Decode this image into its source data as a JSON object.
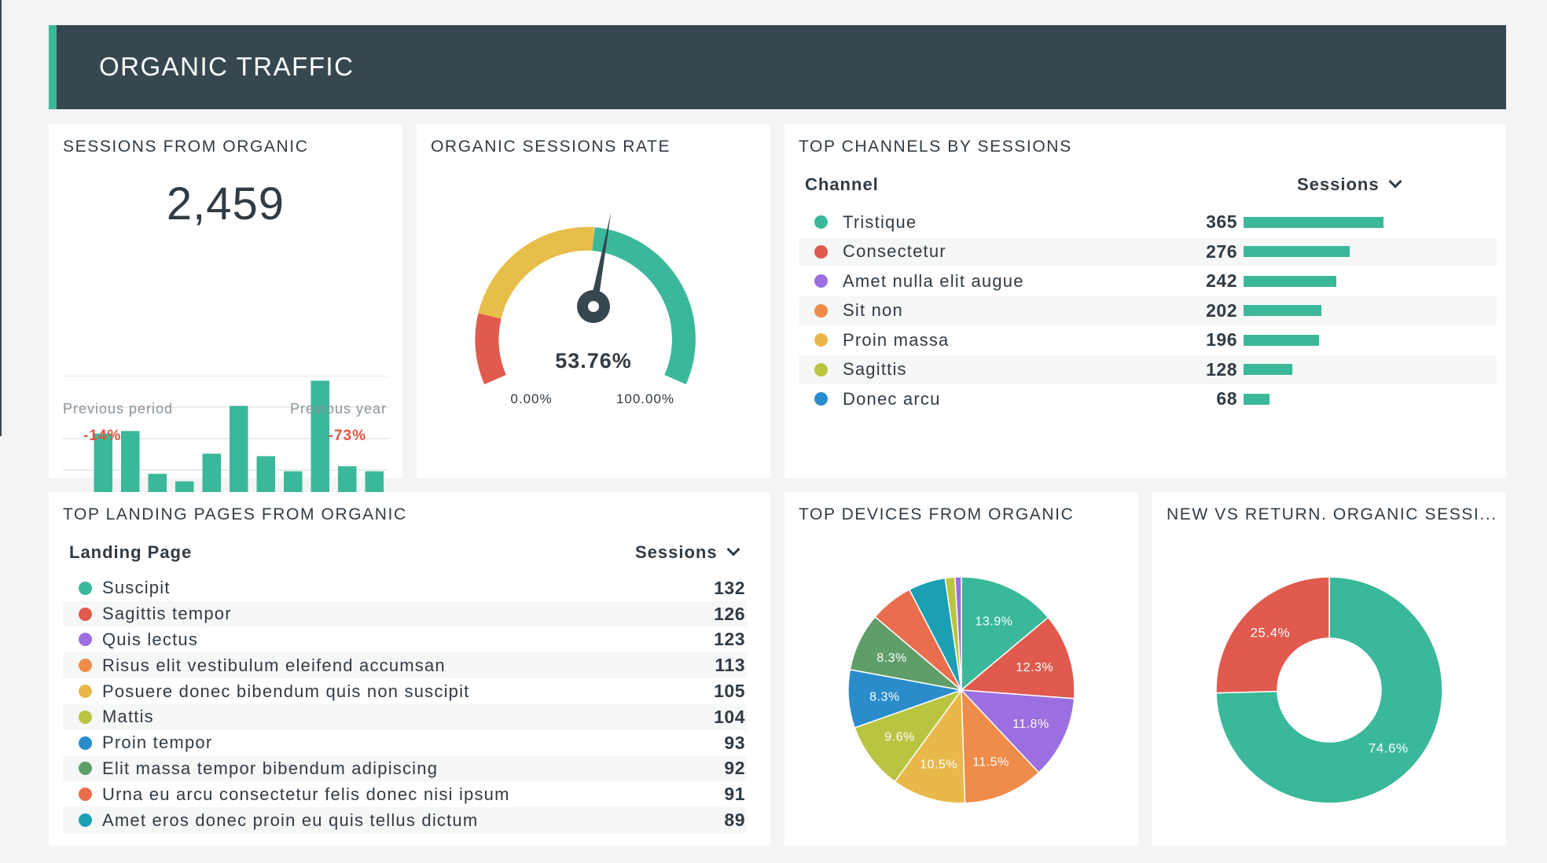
{
  "header": {
    "title": "ORGANIC TRAFFIC"
  },
  "colors": {
    "accent": "#3bb89a",
    "header_bg": "#37474f",
    "negative": "#e05547"
  },
  "sessions_card": {
    "title": "SESSIONS FROM ORGANIC",
    "value": "2,459",
    "previous_period_label": "Previous period",
    "previous_period_value": "-14%",
    "previous_year_label": "Previous year",
    "previous_year_value": "-73%"
  },
  "rate_card": {
    "title": "ORGANIC SESSIONS RATE",
    "value": "53.76%",
    "min_label": "0.00%",
    "max_label": "100.00%",
    "value_pct": 53.76
  },
  "channels_card": {
    "title": "TOP CHANNELS BY SESSIONS",
    "col_channel": "Channel",
    "col_sessions": "Sessions",
    "rows": [
      {
        "label": "Tristique",
        "value": "365",
        "n": 365,
        "color": "#3bb89a"
      },
      {
        "label": "Consectetur",
        "value": "276",
        "n": 276,
        "color": "#e05a4e"
      },
      {
        "label": "Amet nulla elit augue",
        "value": "242",
        "n": 242,
        "color": "#9b6fe0"
      },
      {
        "label": "Sit non",
        "value": "202",
        "n": 202,
        "color": "#ef8c4a"
      },
      {
        "label": "Proin massa",
        "value": "196",
        "n": 196,
        "color": "#e8b94a"
      },
      {
        "label": "Sagittis",
        "value": "128",
        "n": 128,
        "color": "#b9c441"
      },
      {
        "label": "Donec arcu",
        "value": "68",
        "n": 68,
        "color": "#2b8ccc"
      }
    ]
  },
  "landing_card": {
    "title": "TOP LANDING PAGES FROM ORGANIC",
    "col_page": "Landing Page",
    "col_sessions": "Sessions",
    "rows": [
      {
        "label": "Suscipit",
        "value": "132",
        "color": "#3bb89a"
      },
      {
        "label": "Sagittis tempor",
        "value": "126",
        "color": "#e05a4e"
      },
      {
        "label": "Quis lectus",
        "value": "123",
        "color": "#9b6fe0"
      },
      {
        "label": "Risus elit vestibulum eleifend accumsan",
        "value": "113",
        "color": "#ef8c4a"
      },
      {
        "label": "Posuere donec bibendum quis non suscipit",
        "value": "105",
        "color": "#e8b94a"
      },
      {
        "label": "Mattis",
        "value": "104",
        "color": "#b9c441"
      },
      {
        "label": "Proin tempor",
        "value": "93",
        "color": "#2b8ccc"
      },
      {
        "label": "Elit massa tempor bibendum adipiscing",
        "value": "92",
        "color": "#5f9e68"
      },
      {
        "label": "Urna eu arcu consectetur felis donec nisi ipsum",
        "value": "91",
        "color": "#ea6e4e"
      },
      {
        "label": "Amet eros donec proin eu quis tellus dictum",
        "value": "89",
        "color": "#1a9fb3"
      }
    ]
  },
  "devices_card": {
    "title": "TOP DEVICES FROM ORGANIC"
  },
  "newreturn_card": {
    "title": "NEW VS RETURN. ORGANIC SESSI..."
  },
  "chart_data": [
    {
      "type": "bar",
      "series": [
        {
          "values": [
            2,
            27,
            28,
            11,
            8,
            19,
            38,
            18,
            12,
            48,
            14,
            12
          ]
        }
      ],
      "ylim": [
        0,
        50
      ],
      "grid": true
    },
    {
      "type": "pie",
      "labels": [
        "13.9%",
        "12.3%",
        "11.8%",
        "11.5%",
        "10.5%",
        "9.6%",
        "8.3%",
        "8.3%",
        "",
        "",
        "",
        ""
      ],
      "values": [
        13.9,
        12.3,
        11.8,
        11.5,
        10.5,
        9.6,
        8.3,
        8.3,
        6.2,
        5.3,
        1.4,
        0.9
      ],
      "colors": [
        "#3bb89a",
        "#e05a4e",
        "#9b6fe0",
        "#ef8c4a",
        "#e8b94a",
        "#b9c441",
        "#2b8ccc",
        "#5f9e68",
        "#ea6e4e",
        "#1a9fb3",
        "#b9c441",
        "#9b6fe0"
      ]
    },
    {
      "type": "pie",
      "donut": true,
      "labels": [
        "74.6%",
        "25.4%"
      ],
      "values": [
        74.6,
        25.4
      ],
      "colors": [
        "#3bb89a",
        "#e05a4e"
      ]
    }
  ]
}
